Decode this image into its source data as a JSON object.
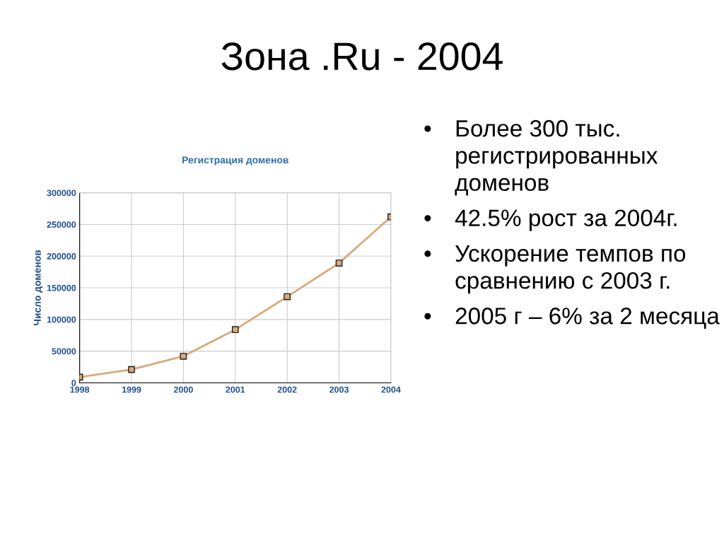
{
  "chart_data": {
    "type": "line",
    "title": "Зона .Ru - 2004",
    "subtitle": "Регистрация доменов",
    "ylabel": "Число доменов",
    "x": [
      1998,
      1999,
      2000,
      2001,
      2002,
      2003,
      2004
    ],
    "series": [
      {
        "color": "#d8a878",
        "values": [
          9000,
          21000,
          42000,
          84000,
          136000,
          189000,
          262000
        ]
      }
    ],
    "xlim": [
      1998,
      2004
    ],
    "xticks": [
      1998,
      1999,
      2000,
      2001,
      2002,
      2003,
      2004
    ],
    "ylim": [
      0,
      300000
    ],
    "yticks": [
      0,
      50000,
      100000,
      150000,
      200000,
      250000,
      300000
    ],
    "grid": true,
    "marker": "square",
    "line_style": "solid",
    "annotations": [
      "• Более 300 тыс. регистрированных доменов",
      "• 42.5% рост за 2004г.",
      "• Ускорение темпов по сравнению с 2003 г.",
      "• 2005 г – 6% за 2 месяца"
    ]
  }
}
